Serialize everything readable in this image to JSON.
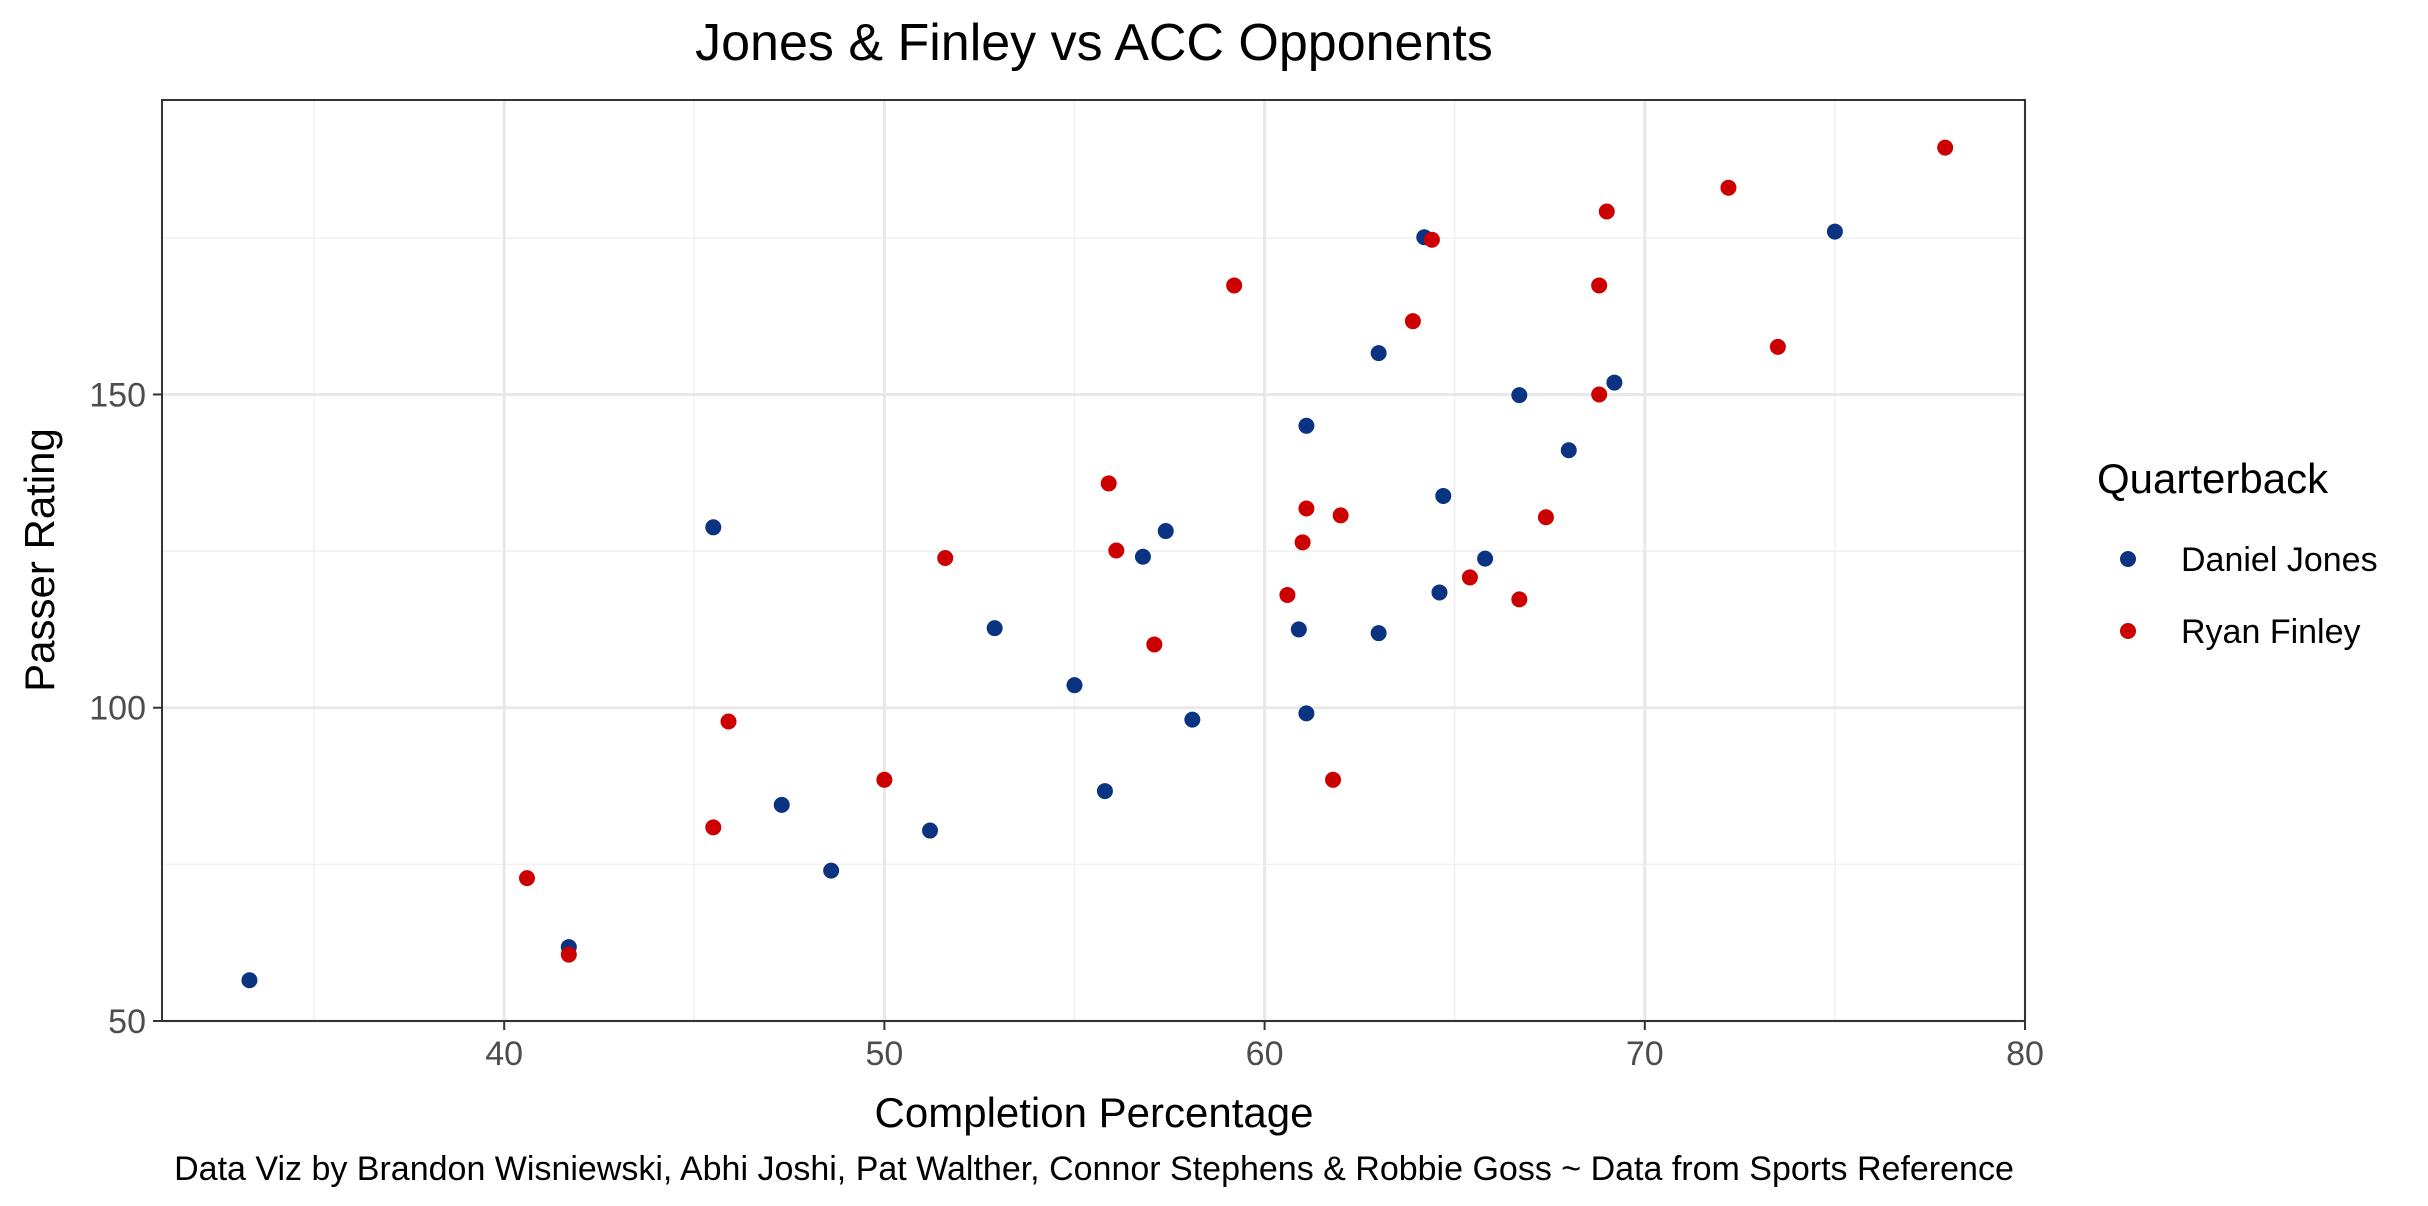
{
  "chart_data": {
    "type": "scatter",
    "title": "Jones & Finley vs ACC Opponents",
    "xlabel": "Completion Percentage",
    "ylabel": "Passer Rating",
    "xlim": [
      31,
      80
    ],
    "ylim": [
      50,
      197
    ],
    "x_ticks": [
      40,
      50,
      60,
      70,
      80
    ],
    "y_ticks": [
      50,
      100,
      150
    ],
    "grid": true,
    "legend": {
      "title": "Quarterback",
      "position": "right"
    },
    "caption": "Data Viz by Brandon Wisniewski, Abhi Joshi, Pat Walther, Connor Stephens & Robbie Goss ~ Data from Sports Reference",
    "series": [
      {
        "name": "Daniel Jones",
        "color": "#0a3382",
        "points": [
          [
            33.3,
            56.5
          ],
          [
            41.7,
            61.8
          ],
          [
            45.5,
            128.8
          ],
          [
            47.3,
            84.5
          ],
          [
            48.6,
            74.0
          ],
          [
            51.2,
            80.4
          ],
          [
            52.9,
            112.7
          ],
          [
            55.0,
            103.6
          ],
          [
            55.8,
            86.7
          ],
          [
            56.8,
            124.1
          ],
          [
            57.4,
            128.2
          ],
          [
            58.1,
            98.1
          ],
          [
            60.9,
            112.5
          ],
          [
            61.1,
            99.1
          ],
          [
            61.1,
            145.0
          ],
          [
            63.0,
            111.9
          ],
          [
            63.0,
            156.6
          ],
          [
            64.2,
            175.1
          ],
          [
            64.6,
            118.4
          ],
          [
            64.7,
            133.8
          ],
          [
            65.8,
            123.8
          ],
          [
            66.7,
            149.9
          ],
          [
            68.0,
            141.1
          ],
          [
            69.2,
            151.9
          ],
          [
            75.0,
            176.0
          ]
        ]
      },
      {
        "name": "Ryan Finley",
        "color": "#cc0000",
        "points": [
          [
            40.6,
            72.8
          ],
          [
            41.7,
            60.6
          ],
          [
            45.5,
            80.9
          ],
          [
            45.9,
            97.8
          ],
          [
            50.0,
            88.5
          ],
          [
            51.6,
            123.9
          ],
          [
            55.9,
            135.8
          ],
          [
            56.1,
            125.1
          ],
          [
            57.1,
            110.1
          ],
          [
            59.2,
            167.4
          ],
          [
            60.6,
            118.0
          ],
          [
            61.0,
            126.4
          ],
          [
            61.1,
            131.8
          ],
          [
            61.8,
            88.5
          ],
          [
            62.0,
            130.7
          ],
          [
            63.9,
            161.7
          ],
          [
            64.4,
            174.7
          ],
          [
            65.4,
            120.8
          ],
          [
            66.7,
            117.3
          ],
          [
            67.4,
            130.4
          ],
          [
            68.8,
            150.0
          ],
          [
            68.8,
            167.4
          ],
          [
            69.0,
            179.2
          ],
          [
            72.2,
            183.0
          ],
          [
            73.5,
            157.6
          ],
          [
            77.9,
            189.4
          ]
        ]
      }
    ]
  }
}
